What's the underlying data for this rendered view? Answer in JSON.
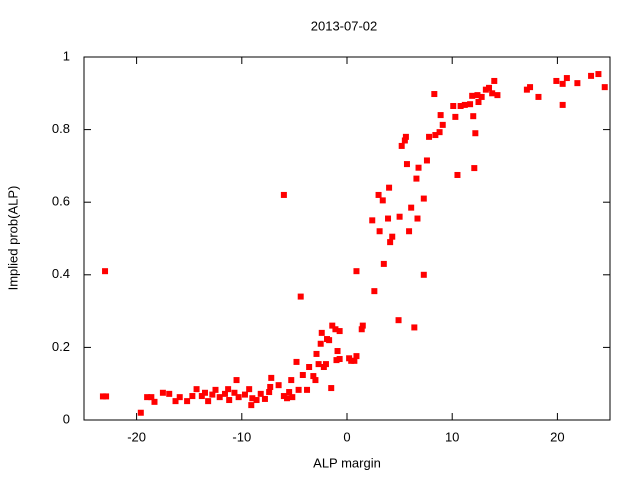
{
  "chart_data": {
    "type": "scatter",
    "title": "2013-07-02",
    "x_label": "ALP margin",
    "y_label": "Implied prob(ALP)",
    "xlim": [
      -25,
      25
    ],
    "ylim": [
      0,
      1
    ],
    "xticks": [
      -20,
      -10,
      0,
      10,
      20
    ],
    "yticks": [
      0,
      0.2,
      0.4,
      0.6,
      0.8,
      1
    ],
    "color": "#ff0000",
    "x": [
      -23.2,
      -22.9,
      -23.0,
      -19.6,
      -19.0,
      -18.6,
      -18.3,
      -17.5,
      -16.9,
      -16.3,
      -15.9,
      -15.2,
      -14.7,
      -14.3,
      -13.8,
      -13.5,
      -13.2,
      -12.8,
      -12.5,
      -12.1,
      -11.6,
      -11.3,
      -11.2,
      -10.7,
      -10.5,
      -10.3,
      -9.7,
      -9.3,
      -9.1,
      -9.0,
      -8.6,
      -8.2,
      -7.8,
      -7.4,
      -7.3,
      -7.2,
      -6.5,
      -6.0,
      -6.0,
      -5.7,
      -5.5,
      -5.3,
      -5.2,
      -4.8,
      -4.6,
      -4.4,
      -4.2,
      -3.8,
      -3.6,
      -3.2,
      -3.0,
      -2.9,
      -2.7,
      -2.5,
      -2.4,
      -2.2,
      -2.0,
      -1.9,
      -1.7,
      -1.5,
      -1.4,
      -1.1,
      -1.0,
      -0.9,
      -0.7,
      -0.7,
      0.2,
      0.4,
      0.7,
      0.9,
      0.9,
      1.4,
      1.5,
      2.4,
      2.6,
      3.0,
      3.1,
      3.4,
      3.5,
      3.9,
      4.0,
      4.1,
      4.3,
      4.9,
      5.0,
      5.2,
      5.5,
      5.6,
      5.7,
      5.9,
      6.1,
      6.4,
      6.6,
      6.7,
      6.8,
      7.3,
      7.3,
      7.6,
      7.8,
      8.3,
      8.4,
      8.8,
      8.9,
      9.1,
      10.1,
      10.3,
      10.5,
      10.8,
      11.2,
      11.7,
      11.9,
      12.0,
      12.1,
      12.2,
      12.4,
      12.5,
      12.8,
      13.2,
      13.5,
      13.8,
      14.0,
      14.3,
      17.1,
      17.4,
      18.2,
      19.9,
      20.5,
      20.5,
      20.9,
      21.9,
      23.2,
      23.9,
      24.5
    ],
    "values": [
      0.065,
      0.065,
      0.41,
      0.02,
      0.063,
      0.063,
      0.05,
      0.075,
      0.072,
      0.052,
      0.063,
      0.052,
      0.066,
      0.085,
      0.066,
      0.075,
      0.052,
      0.07,
      0.083,
      0.063,
      0.072,
      0.085,
      0.055,
      0.075,
      0.11,
      0.063,
      0.07,
      0.085,
      0.041,
      0.06,
      0.055,
      0.072,
      0.058,
      0.077,
      0.091,
      0.116,
      0.096,
      0.62,
      0.066,
      0.06,
      0.077,
      0.11,
      0.063,
      0.16,
      0.083,
      0.34,
      0.124,
      0.083,
      0.146,
      0.121,
      0.11,
      0.182,
      0.154,
      0.21,
      0.24,
      0.146,
      0.154,
      0.223,
      0.22,
      0.088,
      0.26,
      0.25,
      0.165,
      0.19,
      0.245,
      0.168,
      0.17,
      0.163,
      0.163,
      0.176,
      0.41,
      0.25,
      0.26,
      0.55,
      0.355,
      0.62,
      0.52,
      0.605,
      0.43,
      0.555,
      0.64,
      0.49,
      0.505,
      0.275,
      0.56,
      0.755,
      0.77,
      0.78,
      0.705,
      0.52,
      0.585,
      0.255,
      0.665,
      0.555,
      0.695,
      0.61,
      0.4,
      0.715,
      0.78,
      0.898,
      0.785,
      0.793,
      0.84,
      0.813,
      0.865,
      0.835,
      0.675,
      0.865,
      0.868,
      0.87,
      0.893,
      0.837,
      0.694,
      0.79,
      0.895,
      0.876,
      0.89,
      0.91,
      0.915,
      0.9,
      0.934,
      0.895,
      0.91,
      0.917,
      0.89,
      0.934,
      0.926,
      0.868,
      0.942,
      0.928,
      0.948,
      0.953,
      0.917
    ]
  }
}
